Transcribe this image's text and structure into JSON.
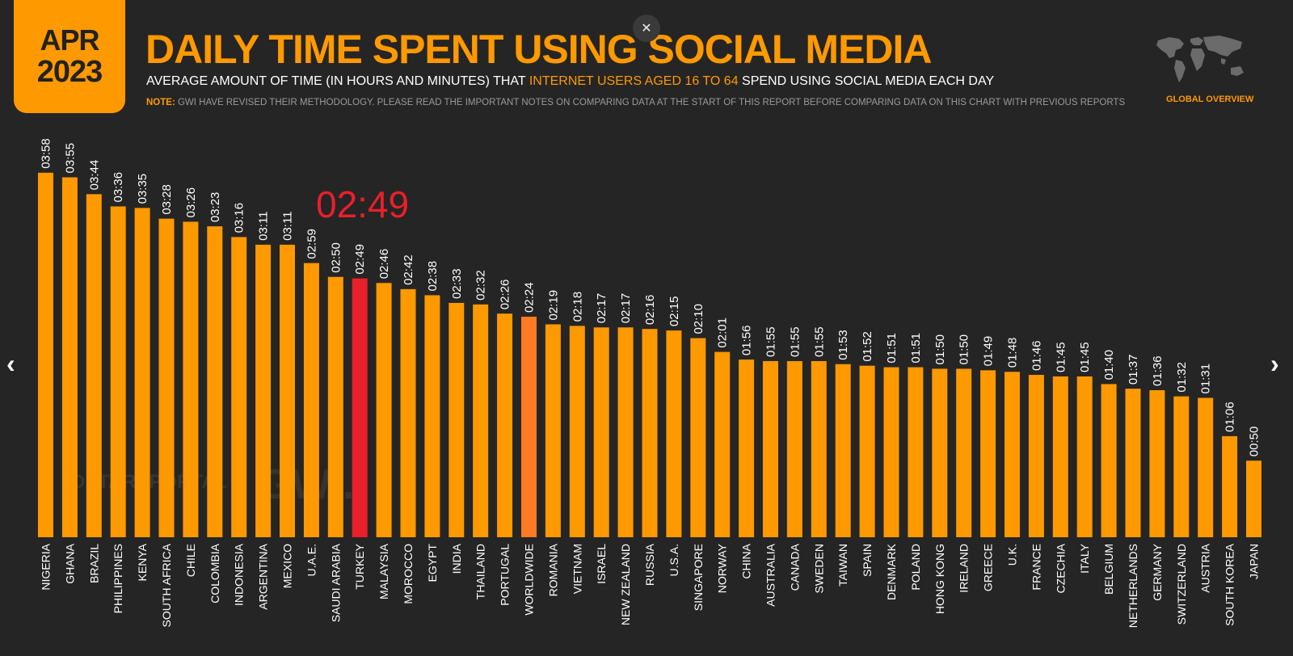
{
  "badge": {
    "month": "APR",
    "year": "2023"
  },
  "header": {
    "title": "DAILY TIME SPENT USING SOCIAL MEDIA",
    "subtitle_pre": "AVERAGE AMOUNT OF TIME (IN HOURS AND MINUTES) THAT ",
    "subtitle_highlight": "INTERNET USERS AGED 16 TO 64",
    "subtitle_post": " SPEND USING SOCIAL MEDIA EACH DAY",
    "note_label": "NOTE:",
    "note_text": " GWI HAVE REVISED THEIR METHODOLOGY. PLEASE READ THE IMPORTANT NOTES ON COMPARING DATA AT THE START OF THIS REPORT BEFORE COMPARING DATA ON THIS CHART WITH PREVIOUS REPORTS",
    "global_label": "GLOBAL OVERVIEW",
    "close_symbol": "✕"
  },
  "nav": {
    "prev_symbol": "‹",
    "next_symbol": "›"
  },
  "watermarks": {
    "datareportal": "DATAREPORTAL",
    "gwi": "GWI."
  },
  "callout": {
    "text": "02:49"
  },
  "icons": {
    "close": "close-icon",
    "prev": "chevron-left-icon",
    "next": "chevron-right-icon",
    "globe": "world-map-icon"
  },
  "colors": {
    "bar": "#ff9900",
    "highlight": "#e8202a",
    "worldwide": "#ff7a22",
    "background": "#252525"
  },
  "chart_data": {
    "type": "bar",
    "ylim": [
      0,
      240
    ],
    "highlight_category": "TURKEY",
    "worldwide_category": "WORLDWIDE",
    "categories": [
      "NIGERIA",
      "GHANA",
      "BRAZIL",
      "PHILIPPINES",
      "KENYA",
      "SOUTH AFRICA",
      "CHILE",
      "COLOMBIA",
      "INDONESIA",
      "ARGENTINA",
      "MEXICO",
      "U.A.E.",
      "SAUDI ARABIA",
      "TURKEY",
      "MALAYSIA",
      "MOROCCO",
      "EGYPT",
      "INDIA",
      "THAILAND",
      "PORTUGAL",
      "WORLDWIDE",
      "ROMANIA",
      "VIETNAM",
      "ISRAEL",
      "NEW ZEALAND",
      "RUSSIA",
      "U.S.A.",
      "SINGAPORE",
      "NORWAY",
      "CHINA",
      "AUSTRALIA",
      "CANADA",
      "SWEDEN",
      "TAIWAN",
      "SPAIN",
      "DENMARK",
      "POLAND",
      "HONG KONG",
      "IRELAND",
      "GREECE",
      "U.K.",
      "FRANCE",
      "CZECHIA",
      "ITALY",
      "BELGIUM",
      "NETHERLANDS",
      "GERMANY",
      "SWITZERLAND",
      "AUSTRIA",
      "SOUTH KOREA",
      "JAPAN"
    ],
    "labels": [
      "03:58",
      "03:55",
      "03:44",
      "03:36",
      "03:35",
      "03:28",
      "03:26",
      "03:23",
      "03:16",
      "03:11",
      "03:11",
      "02:59",
      "02:50",
      "02:49",
      "02:46",
      "02:42",
      "02:38",
      "02:33",
      "02:32",
      "02:26",
      "02:24",
      "02:19",
      "02:18",
      "02:17",
      "02:17",
      "02:16",
      "02:15",
      "02:10",
      "02:01",
      "01:56",
      "01:55",
      "01:55",
      "01:55",
      "01:53",
      "01:52",
      "01:51",
      "01:51",
      "01:50",
      "01:50",
      "01:49",
      "01:48",
      "01:46",
      "01:45",
      "01:45",
      "01:40",
      "01:37",
      "01:36",
      "01:32",
      "01:31",
      "01:06",
      "00:50"
    ],
    "values": [
      238,
      235,
      224,
      216,
      215,
      208,
      206,
      203,
      196,
      191,
      191,
      179,
      170,
      169,
      166,
      162,
      158,
      153,
      152,
      146,
      144,
      139,
      138,
      137,
      137,
      136,
      135,
      130,
      121,
      116,
      115,
      115,
      115,
      113,
      112,
      111,
      111,
      110,
      110,
      109,
      108,
      106,
      105,
      105,
      100,
      97,
      96,
      92,
      91,
      66,
      50
    ]
  }
}
